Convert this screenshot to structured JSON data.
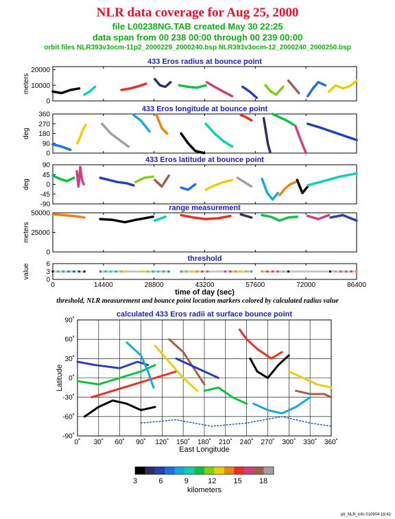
{
  "header": {
    "title": "NLR data coverage for Aug 25, 2000",
    "file_line": "file L00238NG.TAB created May 30 22:25",
    "span_line": "data span from 00 238 00:00 through 00 239 00:00",
    "orbit_line": "orbit files NLR393v3ocm-11p2_2000229_2000240.bsp NLR393v3ocm-12_2000240_2000250.bsp"
  },
  "caption": "threshold, NLR measurement and bounce point location markers colored by calculated radius value",
  "footer": "plt_NLR_info 010904 18:42",
  "colors": {
    "title": "#e8102a",
    "subtitle": "#10b010",
    "panel_title": "#2020c0"
  },
  "colorbar": {
    "label": "kilometers",
    "min": 3,
    "max": 18,
    "ticks": [
      3,
      6,
      9,
      12,
      15,
      18
    ]
  },
  "chart_data": [
    {
      "type": "scatter",
      "title": "433 Eros radius at bounce point",
      "ylabel": "meters",
      "ylim": [
        0,
        22000
      ],
      "yticks": [
        0,
        10000,
        20000
      ],
      "xlim": [
        0,
        86400
      ],
      "series": [
        {
          "x": [
            0,
            2500,
            5000,
            7500
          ],
          "y": [
            6000,
            5000,
            7000,
            8000
          ]
        },
        {
          "x": [
            9000,
            10500,
            12000
          ],
          "y": [
            4000,
            6000,
            9000
          ]
        },
        {
          "x": [
            19500,
            22000,
            24500,
            26500
          ],
          "y": [
            7000,
            8000,
            9500,
            11000
          ]
        },
        {
          "x": [
            29000,
            30500,
            32000,
            33500
          ],
          "y": [
            14000,
            10000,
            9000,
            12000
          ]
        },
        {
          "x": [
            36000,
            38500,
            41000,
            43500
          ],
          "y": [
            10000,
            9000,
            8500,
            10000
          ]
        },
        {
          "x": [
            43800,
            46000,
            48500,
            51000
          ],
          "y": [
            12000,
            9000,
            6000,
            3000
          ]
        },
        {
          "x": [
            54000,
            56000,
            58000
          ],
          "y": [
            9000,
            6000,
            2000
          ]
        },
        {
          "x": [
            60500,
            62000,
            63500,
            65500
          ],
          "y": [
            10000,
            6000,
            4000,
            9000
          ]
        },
        {
          "x": [
            67000,
            68500,
            70000
          ],
          "y": [
            13000,
            9000,
            5000
          ]
        },
        {
          "x": [
            72500,
            74000,
            75500,
            77500
          ],
          "y": [
            3000,
            8000,
            12000,
            10000
          ]
        },
        {
          "x": [
            78500,
            80500,
            82500,
            84500,
            86400
          ],
          "y": [
            6000,
            10000,
            8000,
            9500,
            13000
          ]
        }
      ]
    },
    {
      "type": "scatter",
      "title": "433 Eros longitude at bounce point",
      "ylabel": "deg",
      "ylim": [
        0,
        360
      ],
      "yticks": [
        0,
        90,
        180,
        270,
        360
      ],
      "xlim": [
        0,
        86400
      ],
      "series": [
        {
          "x": [
            0,
            2500,
            5000
          ],
          "y": [
            80,
            60,
            30
          ]
        },
        {
          "x": [
            7000,
            7800,
            8600,
            9400
          ],
          "y": [
            90,
            150,
            220,
            260
          ]
        },
        {
          "x": [
            14000,
            16500,
            19000,
            21500
          ],
          "y": [
            270,
            180,
            120,
            60
          ]
        },
        {
          "x": [
            23000,
            25000,
            27500
          ],
          "y": [
            350,
            300,
            200
          ]
        },
        {
          "x": [
            29500,
            31000,
            32500
          ],
          "y": [
            350,
            230,
            180
          ]
        },
        {
          "x": [
            36500,
            38500,
            40500,
            43000
          ],
          "y": [
            180,
            90,
            20,
            0
          ]
        },
        {
          "x": [
            43500,
            46000,
            48500,
            51000
          ],
          "y": [
            270,
            180,
            110,
            60
          ]
        },
        {
          "x": [
            53500,
            55000,
            56500
          ],
          "y": [
            350,
            330,
            300
          ]
        },
        {
          "x": [
            60000,
            60600,
            61200,
            61800
          ],
          "y": [
            320,
            200,
            80,
            10
          ]
        },
        {
          "x": [
            62500,
            64500,
            66500,
            68500
          ],
          "y": [
            360,
            330,
            300,
            260
          ]
        },
        {
          "x": [
            69000,
            70500,
            72000
          ],
          "y": [
            250,
            120,
            0
          ]
        },
        {
          "x": [
            72500,
            76500,
            81000,
            86400
          ],
          "y": [
            270,
            230,
            180,
            120
          ]
        }
      ]
    },
    {
      "type": "scatter",
      "title": "433 Eros latitude at bounce point",
      "ylabel": "deg",
      "ylim": [
        -90,
        90
      ],
      "yticks": [
        -90,
        -45,
        0,
        45,
        90
      ],
      "xlim": [
        0,
        86400
      ],
      "series": [
        {
          "x": [
            0,
            2000,
            4000,
            6000
          ],
          "y": [
            40,
            25,
            15,
            30
          ]
        },
        {
          "x": [
            6800,
            7300,
            7800,
            8300,
            8800
          ],
          "y": [
            60,
            -10,
            80,
            20,
            0
          ]
        },
        {
          "x": [
            13500,
            16000,
            18500,
            21000,
            23000
          ],
          "y": [
            30,
            20,
            10,
            5,
            -5
          ]
        },
        {
          "x": [
            23500,
            26000,
            28500
          ],
          "y": [
            10,
            30,
            35
          ]
        },
        {
          "x": [
            29000,
            31000,
            33000
          ],
          "y": [
            20,
            -10,
            40
          ]
        },
        {
          "x": [
            36500,
            38500,
            40500
          ],
          "y": [
            -15,
            -25,
            0
          ]
        },
        {
          "x": [
            43500,
            46000,
            48500,
            51000
          ],
          "y": [
            -25,
            -5,
            10,
            20
          ]
        },
        {
          "x": [
            52500,
            54500,
            56500
          ],
          "y": [
            30,
            10,
            -10
          ]
        },
        {
          "x": [
            59500,
            61000,
            62500,
            64000
          ],
          "y": [
            25,
            -40,
            -70,
            -40
          ]
        },
        {
          "x": [
            64500,
            66000,
            67500,
            69000
          ],
          "y": [
            -50,
            -20,
            0,
            10
          ]
        },
        {
          "x": [
            69500,
            71000,
            72500
          ],
          "y": [
            20,
            -40,
            -10
          ]
        },
        {
          "x": [
            72500,
            77000,
            81500,
            86400
          ],
          "y": [
            -5,
            15,
            35,
            50
          ]
        }
      ]
    },
    {
      "type": "scatter",
      "title": "range measurement",
      "ylabel": "meters",
      "ylim": [
        0,
        50000
      ],
      "yticks": [
        0,
        25000,
        50000
      ],
      "xlim": [
        0,
        86400
      ],
      "series": [
        {
          "x": [
            0,
            3000,
            6000,
            9000
          ],
          "y": [
            48000,
            47000,
            46000,
            44000
          ]
        },
        {
          "x": [
            13500,
            17000,
            20500,
            23500,
            28500
          ],
          "y": [
            42000,
            41000,
            38000,
            41000,
            45000
          ]
        },
        {
          "x": [
            29000,
            32000
          ],
          "y": [
            40000,
            45000
          ]
        },
        {
          "x": [
            36500,
            40000,
            43500,
            47000,
            50500
          ],
          "y": [
            47000,
            44000,
            42000,
            43000,
            46000
          ]
        },
        {
          "x": [
            53500,
            56500
          ],
          "y": [
            48000,
            44000
          ]
        },
        {
          "x": [
            59500,
            62000,
            64500,
            67000,
            69500
          ],
          "y": [
            47000,
            45000,
            40000,
            44000,
            45000
          ]
        },
        {
          "x": [
            72500,
            75500,
            78500
          ],
          "y": [
            46000,
            42000,
            47000
          ]
        },
        {
          "x": [
            79000,
            82500,
            86400
          ],
          "y": [
            44000,
            47000,
            40000
          ]
        }
      ]
    },
    {
      "type": "scatter",
      "title": "threshold",
      "xlabel": "time of day (sec)",
      "ylabel": "value",
      "ylim": [
        0,
        6
      ],
      "yticks": [
        0,
        3,
        6
      ],
      "xlim": [
        0,
        86400
      ],
      "xticks": [
        0,
        14400,
        28800,
        43200,
        57600,
        72000,
        86400
      ],
      "series": [
        {
          "x": [
            0,
            9000
          ],
          "y": [
            3,
            3
          ]
        },
        {
          "x": [
            13500,
            33000
          ],
          "y": [
            3,
            3
          ]
        },
        {
          "x": [
            36500,
            56500
          ],
          "y": [
            3,
            3
          ]
        },
        {
          "x": [
            59500,
            86400
          ],
          "y": [
            3,
            3
          ]
        }
      ]
    },
    {
      "type": "scatter",
      "title": "calculated 433 Eros radii at surface bounce point",
      "xlabel": "East Longitude",
      "ylabel": "Latitude",
      "xlim": [
        0,
        360
      ],
      "ylim": [
        -90,
        90
      ],
      "xticks": [
        "0˚",
        "30˚",
        "60˚",
        "90˚",
        "120˚",
        "150˚",
        "180˚",
        "210˚",
        "240˚",
        "270˚",
        "300˚",
        "330˚",
        "360˚"
      ],
      "yticks": [
        "-90˚",
        "-60˚",
        "-30˚",
        "0˚",
        "30˚",
        "60˚",
        "90˚"
      ],
      "series": [
        {
          "x": [
            0,
            25,
            60,
            85,
            100
          ],
          "y": [
            25,
            20,
            15,
            25,
            20
          ]
        },
        {
          "x": [
            0,
            30,
            60,
            90,
            110
          ],
          "y": [
            -5,
            -10,
            0,
            10,
            20
          ]
        },
        {
          "x": [
            20,
            50,
            80,
            110,
            140
          ],
          "y": [
            -30,
            -20,
            -10,
            0,
            10
          ]
        },
        {
          "x": [
            10,
            30,
            50,
            70,
            90,
            110
          ],
          "y": [
            -60,
            -45,
            -35,
            -40,
            -50,
            -45
          ]
        },
        {
          "x": [
            70,
            90,
            100,
            108
          ],
          "y": [
            55,
            35,
            10,
            -15
          ]
        },
        {
          "x": [
            110,
            130,
            150,
            170
          ],
          "y": [
            50,
            25,
            0,
            -20
          ]
        },
        {
          "x": [
            130,
            150,
            165,
            180
          ],
          "y": [
            60,
            40,
            15,
            -10
          ]
        },
        {
          "x": [
            140,
            160,
            180,
            200
          ],
          "y": [
            30,
            20,
            10,
            0
          ]
        },
        {
          "x": [
            180,
            200,
            220,
            240
          ],
          "y": [
            -20,
            -15,
            -30,
            -40
          ]
        },
        {
          "x": [
            230,
            240,
            255,
            275,
            290
          ],
          "y": [
            75,
            60,
            45,
            30,
            40
          ]
        },
        {
          "x": [
            245,
            255,
            270,
            285,
            300
          ],
          "y": [
            30,
            10,
            0,
            20,
            35
          ]
        },
        {
          "x": [
            250,
            270,
            290,
            310,
            330
          ],
          "y": [
            -40,
            -50,
            -55,
            -45,
            -30
          ]
        },
        {
          "x": [
            300,
            320,
            340,
            360
          ],
          "y": [
            10,
            0,
            -10,
            -15
          ]
        },
        {
          "x": [
            310,
            330,
            350,
            360
          ],
          "y": [
            -20,
            -25,
            -25,
            -30
          ]
        },
        {
          "x": [
            90,
            140,
            190,
            240,
            290,
            330,
            360
          ],
          "y": [
            -70,
            -65,
            -75,
            -70,
            -60,
            -70,
            -75
          ]
        }
      ]
    }
  ]
}
